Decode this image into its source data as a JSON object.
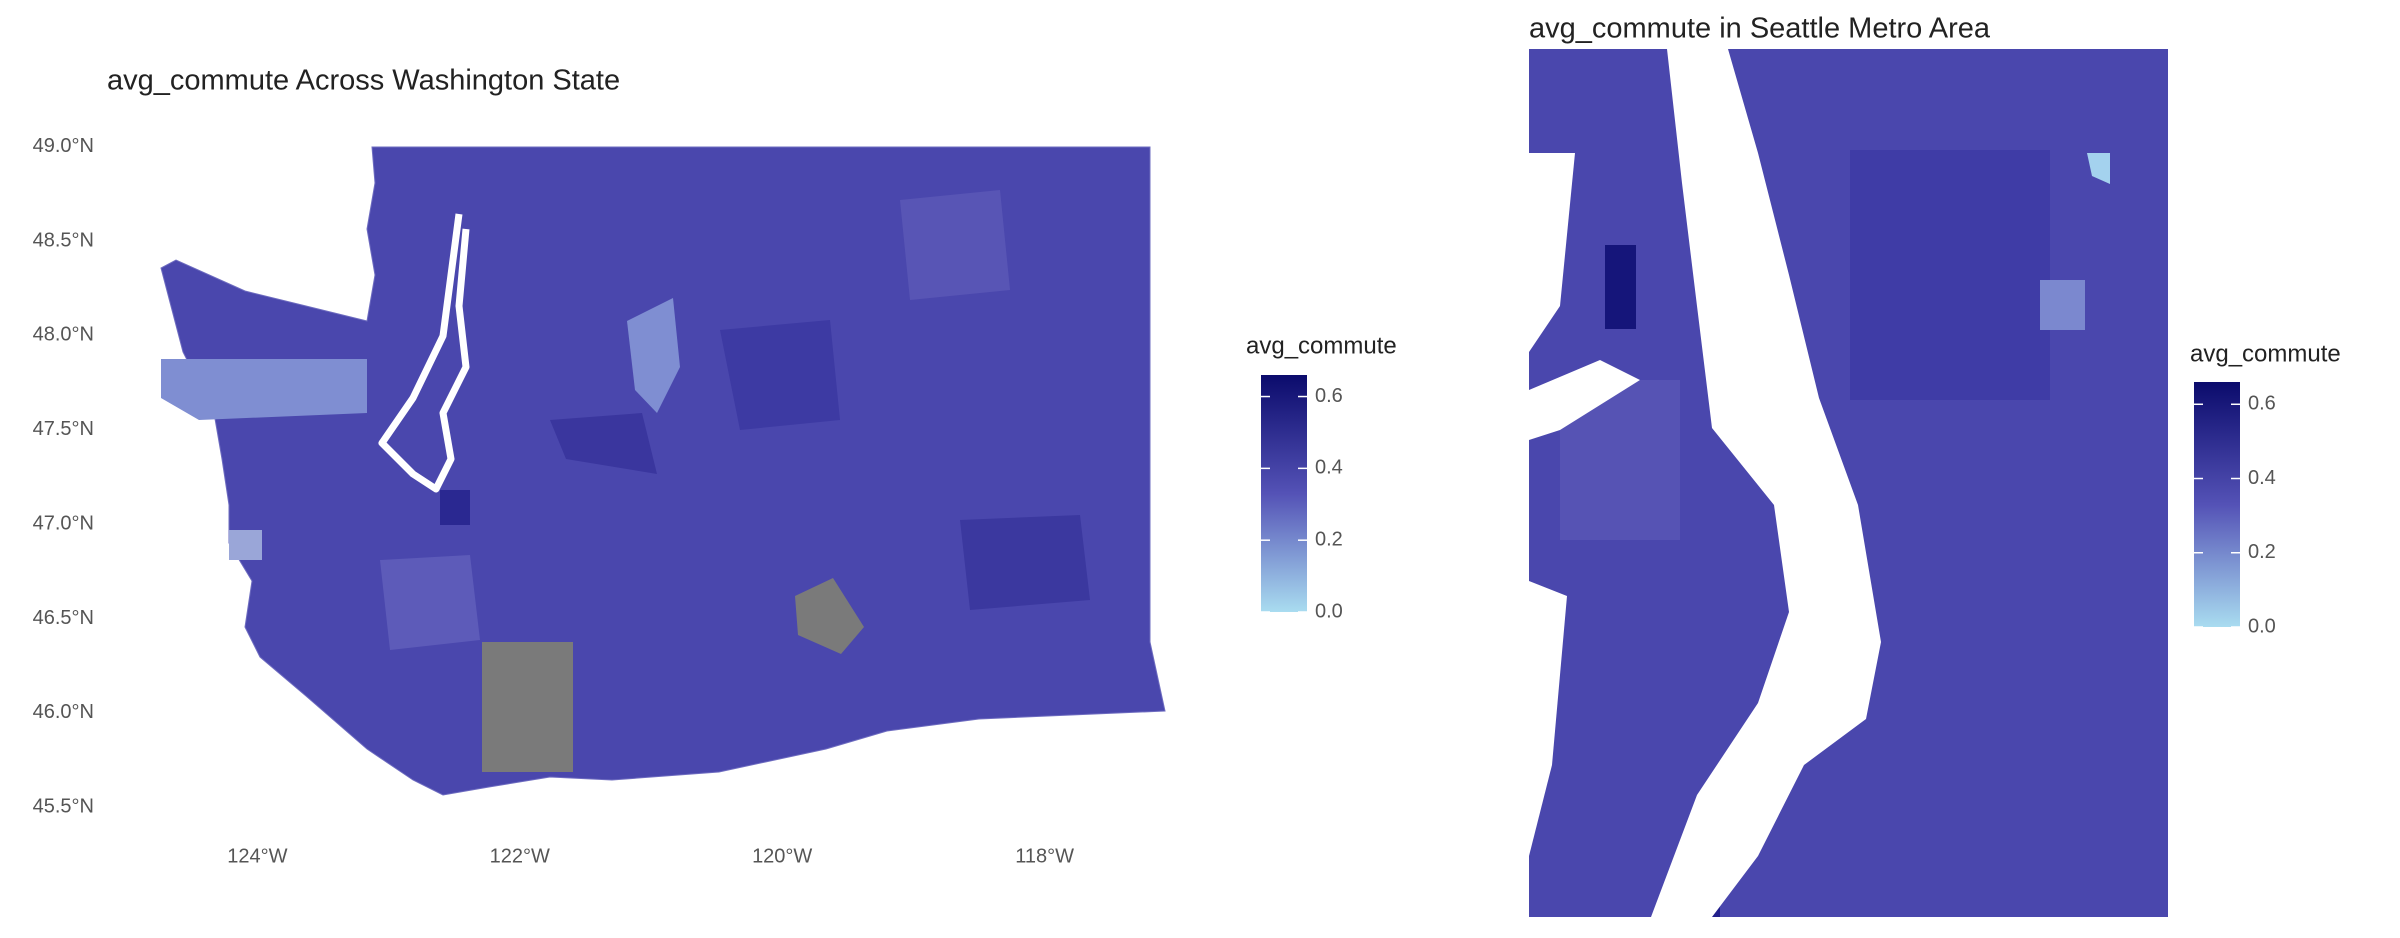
{
  "maps": [
    {
      "title": "avg_commute Across Washington State",
      "lat_ticks": [
        {
          "value": 49.0,
          "label": "49.0°N"
        },
        {
          "value": 48.5,
          "label": "48.5°N"
        },
        {
          "value": 48.0,
          "label": "48.0°N"
        },
        {
          "value": 47.5,
          "label": "47.5°N"
        },
        {
          "value": 47.0,
          "label": "47.0°N"
        },
        {
          "value": 46.5,
          "label": "46.5°N"
        },
        {
          "value": 46.0,
          "label": "46.0°N"
        },
        {
          "value": 45.5,
          "label": "45.5°N"
        }
      ],
      "lon_ticks": [
        {
          "value": -124,
          "label": "124°W"
        },
        {
          "value": -122,
          "label": "122°W"
        },
        {
          "value": -120,
          "label": "120°W"
        },
        {
          "value": -118,
          "label": "118°W"
        }
      ],
      "xlim": [
        -125.2,
        -116.8
      ],
      "ylim": [
        45.3,
        49.2
      ],
      "legend": {
        "title": "avg_commute",
        "lim": [
          0,
          0.66
        ],
        "ticks": [
          {
            "value": 0,
            "label": "0.0"
          },
          {
            "value": 0.2,
            "label": "0.2"
          },
          {
            "value": 0.4,
            "label": "0.4"
          },
          {
            "value": 0.6,
            "label": "0.6"
          }
        ]
      }
    },
    {
      "title": "avg_commute in Seattle Metro Area",
      "legend": {
        "title": "avg_commute",
        "lim": [
          0,
          0.66
        ],
        "ticks": [
          {
            "value": 0,
            "label": "0.0"
          },
          {
            "value": 0.2,
            "label": "0.2"
          },
          {
            "value": 0.4,
            "label": "0.4"
          },
          {
            "value": 0.6,
            "label": "0.6"
          }
        ]
      }
    }
  ],
  "legend_colors": [
    "#a9dcf0",
    "#5452b6",
    "#0b0b6c"
  ]
}
